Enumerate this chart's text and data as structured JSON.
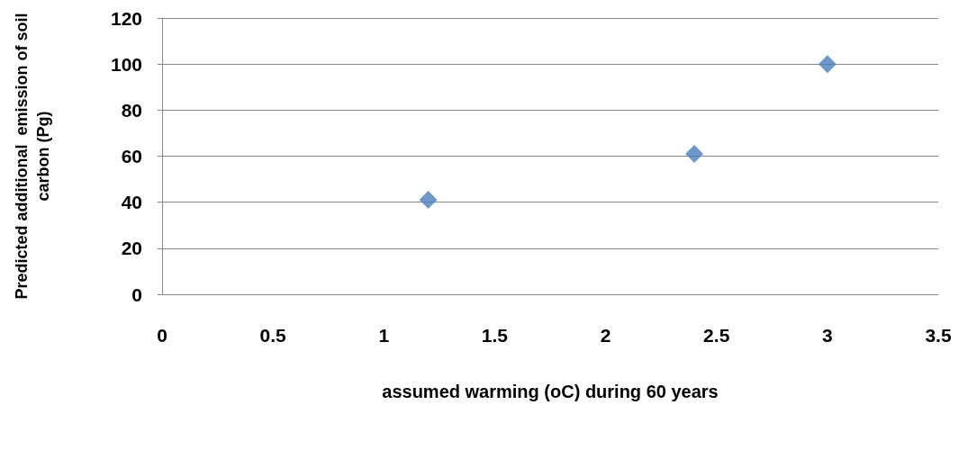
{
  "chart_data": {
    "type": "scatter",
    "xlabel": "assumed warming (oC) during 60 years",
    "ylabel": "Predicted additional  emission of soil carbon (Pg)",
    "x": [
      1.2,
      2.4,
      3
    ],
    "series": [
      {
        "color": "#4a7ebb",
        "values": [
          41,
          61,
          100
        ]
      }
    ],
    "xlim": [
      0,
      3.5
    ],
    "xticks": [
      0,
      0.5,
      1,
      1.5,
      2,
      2.5,
      3,
      3.5
    ],
    "ylim": [
      0,
      120
    ],
    "yticks": [
      0,
      20,
      40,
      60,
      80,
      100,
      120
    ],
    "grid": "y",
    "marker": "diamond"
  }
}
